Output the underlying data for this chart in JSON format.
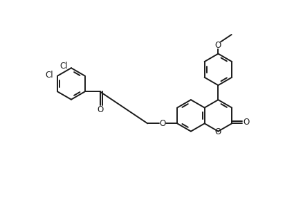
{
  "bg_color": "#ffffff",
  "line_color": "#1a1a1a",
  "figwidth": 4.38,
  "figheight": 3.12,
  "dpi": 100,
  "lw": 1.4,
  "font_size": 8.5,
  "r": 0.52,
  "xlim": [
    0,
    10
  ],
  "ylim": [
    0,
    7.1
  ]
}
